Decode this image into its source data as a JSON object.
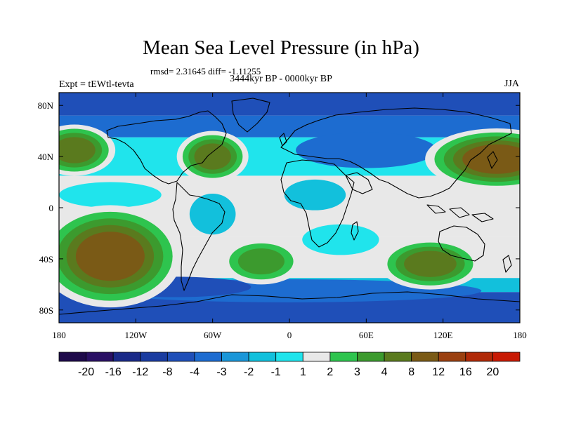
{
  "title": "Mean Sea Level Pressure (in hPa)",
  "stats": "rmsd= 2.31645 diff= -1.11255",
  "left_label": "Expt = tEWtl-tevta",
  "center_label": "3444kyr BP - 0000kyr BP",
  "right_label": "JJA",
  "chart_data": {
    "type": "heatmap",
    "projection": "cylindrical-equidistant",
    "variable": "Mean Sea Level Pressure anomaly",
    "units": "hPa",
    "x_range": [
      -180,
      180
    ],
    "y_range": [
      -90,
      90
    ],
    "x_ticks": [
      {
        "value": -180,
        "label": "180"
      },
      {
        "value": -120,
        "label": "120W"
      },
      {
        "value": -60,
        "label": "60W"
      },
      {
        "value": 0,
        "label": "0"
      },
      {
        "value": 60,
        "label": "60E"
      },
      {
        "value": 120,
        "label": "120E"
      },
      {
        "value": 180,
        "label": "180"
      }
    ],
    "y_ticks": [
      {
        "value": 80,
        "label": "80N"
      },
      {
        "value": 40,
        "label": "40N"
      },
      {
        "value": 0,
        "label": "0"
      },
      {
        "value": -40,
        "label": "40S"
      },
      {
        "value": -80,
        "label": "80S"
      }
    ],
    "levels": [
      {
        "label": "-20",
        "color": "#2a1064"
      },
      {
        "label": "-16",
        "color": "#1a2a88"
      },
      {
        "label": "-12",
        "color": "#1a3ca0"
      },
      {
        "label": "-8",
        "color": "#1f4fb8"
      },
      {
        "label": "-4",
        "color": "#1d6cd0"
      },
      {
        "label": "-3",
        "color": "#1a96d8"
      },
      {
        "label": "-2",
        "color": "#12c0dc"
      },
      {
        "label": "-1",
        "color": "#20e4ec"
      },
      {
        "label": "1",
        "color": "#e8e8e8"
      },
      {
        "label": "2",
        "color": "#2ec44e"
      },
      {
        "label": "3",
        "color": "#3c9a2e"
      },
      {
        "label": "4",
        "color": "#5a7a1e"
      },
      {
        "label": "8",
        "color": "#7a5a16"
      },
      {
        "label": "12",
        "color": "#9a4010"
      },
      {
        "label": "16",
        "color": "#b02a08"
      },
      {
        "label": "20",
        "color": "#c81a04"
      }
    ],
    "colorbar_labels": [
      "-20",
      "-16",
      "-12",
      "-8",
      "-4",
      "-3",
      "-2",
      "-1",
      "1",
      "2",
      "3",
      "4",
      "8",
      "12",
      "16",
      "20"
    ],
    "regions": [
      {
        "name": "north-atlantic-high",
        "lon": -60,
        "lat": 40,
        "rlon": 14,
        "rlat": 10,
        "level": 11
      },
      {
        "name": "south-pacific-high",
        "lon": -140,
        "lat": -38,
        "rlon": 28,
        "rlat": 20,
        "level": 12
      },
      {
        "name": "south-atlantic-high",
        "lon": -22,
        "lat": -42,
        "rlon": 16,
        "rlat": 9,
        "level": 10
      },
      {
        "name": "south-indian-high",
        "lon": 110,
        "lat": -44,
        "rlon": 20,
        "rlat": 10,
        "level": 11
      },
      {
        "name": "north-pacific-high-west",
        "lon": 162,
        "lat": 38,
        "rlon": 28,
        "rlat": 12,
        "level": 12
      },
      {
        "name": "north-pacific-high-east",
        "lon": -168,
        "lat": 45,
        "rlon": 16,
        "rlat": 10,
        "level": 11
      }
    ]
  }
}
